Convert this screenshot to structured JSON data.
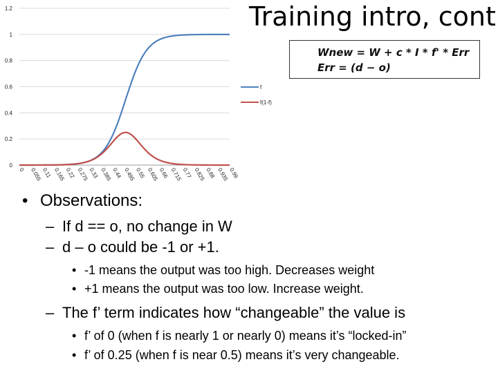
{
  "slide": {
    "title": "Training intro, cont."
  },
  "formula": {
    "line1": "Wnew = W + c * I * f' * Err",
    "line2": "Err = (d − o)"
  },
  "chart_data": {
    "type": "line",
    "y_ticks": [
      "0",
      "0.2",
      "0.4",
      "0.6",
      "0.8",
      "1",
      "1.2"
    ],
    "x_tick_labels": [
      "0",
      "0.055",
      "0.11",
      "0.165",
      "0.22",
      "0.275",
      "0.33",
      "0.385",
      "0.44",
      "0.495",
      "0.55",
      "0.605",
      "0.66",
      "0.715",
      "0.77",
      "0.825",
      "0.88",
      "0.935",
      "0.99"
    ],
    "ylim": [
      0,
      1.2
    ],
    "xlim": [
      0,
      0.99
    ],
    "legend_position": "right",
    "grid": "horizontal",
    "series": [
      {
        "name": "f",
        "color": "#4f81bd",
        "x_center": 0.5,
        "slope": 20
      },
      {
        "name": "f(1-f)",
        "color": "#c0504d",
        "x_center": 0.5,
        "slope": 20
      }
    ]
  },
  "bullets": [
    {
      "level": 1,
      "mark": "•",
      "text": "Observations:"
    },
    {
      "level": 2,
      "mark": "–",
      "text": "If d == o, no change in W"
    },
    {
      "level": 2,
      "mark": "–",
      "text": "d – o could be -1 or +1."
    },
    {
      "level": 3,
      "mark": "•",
      "text": "-1 means the output was too high.  Decreases weight"
    },
    {
      "level": 3,
      "mark": "•",
      "text": "+1 means the output was too low.  Increase weight."
    },
    {
      "level": 2,
      "mark": "–",
      "text": "The f’ term indicates how “changeable” the value is"
    },
    {
      "level": 3,
      "mark": "•",
      "text": "f’ of 0 (when f is nearly 1 or nearly 0) means it’s “locked-in”"
    },
    {
      "level": 3,
      "mark": "•",
      "text": "f’ of 0.25 (when f is near 0.5) means it’s very changeable."
    }
  ]
}
